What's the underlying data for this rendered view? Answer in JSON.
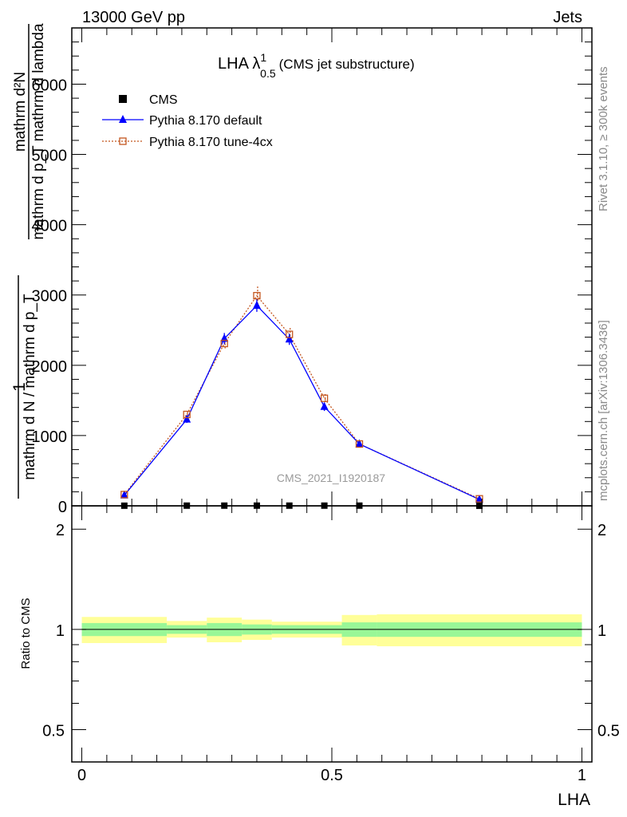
{
  "header": {
    "left": "13000 GeV pp",
    "right": "Jets"
  },
  "side_labels": {
    "rivet": "Rivet 3.1.10, ≥ 300k events",
    "mcplots": "mcplots.cern.ch [arXiv:1306.3436]"
  },
  "title": {
    "main": "LHA λ",
    "sup": "1",
    "sub": "0.5",
    "suffix": "(CMS jet substructure)"
  },
  "watermark": "CMS_2021_I1920187",
  "y_label": {
    "numerator_1": "1",
    "denominator_1": "mathrm d N / mathrm d p_T",
    "numerator_2": "mathrm d²N",
    "denominator_2": "mathrm d p_T mathrm d lambda"
  },
  "x_label": "LHA",
  "ratio_label": "Ratio to CMS",
  "legend": [
    {
      "name": "CMS",
      "color": "#000000",
      "marker": "square"
    },
    {
      "name": "Pythia 8.170 default",
      "color": "#0000ff",
      "marker": "triangle"
    },
    {
      "name": "Pythia 8.170 tune-4cx",
      "color": "#c4561f",
      "marker": "open-square"
    }
  ],
  "chart_data": [
    {
      "type": "line",
      "panel": "main",
      "x": [
        0.085,
        0.21,
        0.285,
        0.35,
        0.415,
        0.485,
        0.555,
        0.795
      ],
      "xlim": [
        -0.02,
        1.02
      ],
      "ylim": [
        0,
        6800
      ],
      "yticks": [
        0,
        1000,
        2000,
        3000,
        4000,
        5000,
        6000
      ],
      "ytick_labels": [
        "0",
        "1000",
        "2000",
        "3000",
        "4000",
        "5000",
        "6000"
      ],
      "grid": false,
      "legend_position": "top-left",
      "series": [
        {
          "name": "CMS",
          "values": [
            2,
            3,
            3,
            3,
            3,
            3,
            3,
            1
          ],
          "color": "#000000"
        },
        {
          "name": "Pythia 8.170 default",
          "values": [
            150,
            1230,
            2380,
            2850,
            2370,
            1410,
            880,
            90
          ],
          "errors": [
            30,
            50,
            80,
            90,
            80,
            60,
            40,
            20
          ],
          "color": "#0000ff"
        },
        {
          "name": "Pythia 8.170 tune-4cx",
          "values": [
            160,
            1300,
            2310,
            2990,
            2440,
            1530,
            880,
            100
          ],
          "errors": [
            30,
            50,
            90,
            130,
            90,
            60,
            40,
            20
          ],
          "color": "#c4561f"
        }
      ]
    },
    {
      "type": "area",
      "panel": "ratio",
      "xlim": [
        -0.02,
        1.02
      ],
      "ylim": [
        0.4,
        2.35
      ],
      "log_scale_y": true,
      "xticks": [
        0,
        0.5,
        1
      ],
      "xtick_labels": [
        "0",
        "0.5",
        "1"
      ],
      "yticks": [
        0.5,
        1,
        2
      ],
      "ytick_labels": [
        "0.5",
        "1",
        "2"
      ],
      "bins": [
        {
          "x0": 0.0,
          "x1": 0.17,
          "green": [
            0.955,
            1.045
          ],
          "yellow": [
            0.91,
            1.09
          ]
        },
        {
          "x0": 0.17,
          "x1": 0.25,
          "green": [
            0.97,
            1.03
          ],
          "yellow": [
            0.945,
            1.06
          ]
        },
        {
          "x0": 0.25,
          "x1": 0.32,
          "green": [
            0.955,
            1.045
          ],
          "yellow": [
            0.915,
            1.085
          ]
        },
        {
          "x0": 0.32,
          "x1": 0.38,
          "green": [
            0.965,
            1.035
          ],
          "yellow": [
            0.93,
            1.07
          ]
        },
        {
          "x0": 0.38,
          "x1": 0.52,
          "green": [
            0.97,
            1.03
          ],
          "yellow": [
            0.945,
            1.055
          ]
        },
        {
          "x0": 0.52,
          "x1": 0.59,
          "green": [
            0.95,
            1.05
          ],
          "yellow": [
            0.895,
            1.105
          ]
        },
        {
          "x0": 0.59,
          "x1": 1.0,
          "green": [
            0.95,
            1.05
          ],
          "yellow": [
            0.89,
            1.11
          ]
        }
      ],
      "series": [
        {
          "name": "Ratio to CMS",
          "values": [
            1,
            1
          ],
          "x": [
            0,
            1
          ],
          "color": "#000000"
        }
      ]
    }
  ]
}
